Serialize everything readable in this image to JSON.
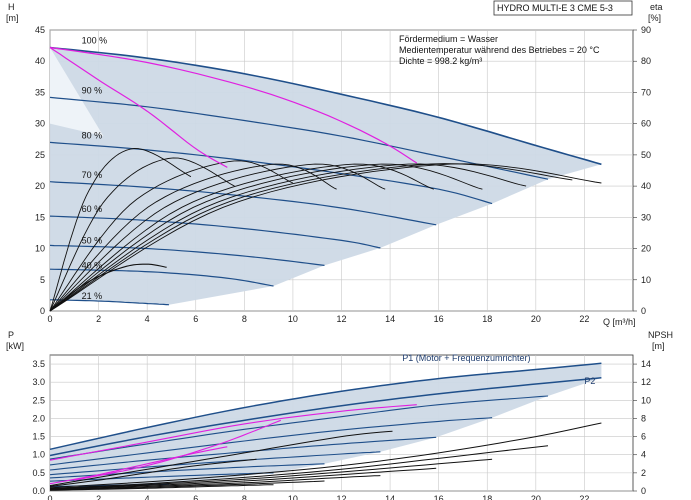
{
  "title": "HYDRO MULTI-E 3 CME 5-3",
  "annotations": [
    "Fördermedium = Wasser",
    "Medientemperatur während des Betriebes = 20 °C",
    "Dichte = 998.2 kg/m³"
  ],
  "colors": {
    "fill": "#cdd9e6",
    "curve": "#1f4f8a",
    "accent": "#e020e0",
    "eff": "#111111",
    "grid": "#c8c8c8"
  },
  "chart_data": [
    {
      "type": "line",
      "xlabel": "Q [m³/h]",
      "ylabel_left": [
        "H",
        "[m]"
      ],
      "ylabel_right": [
        "eta",
        "[%]"
      ],
      "xlim": [
        0,
        24
      ],
      "ylim_left": [
        0,
        45
      ],
      "ylim_right": [
        0,
        90
      ],
      "x_ticks": [
        "0",
        "2",
        "4",
        "6",
        "8",
        "10",
        "12",
        "14",
        "16",
        "18",
        "20",
        "22"
      ],
      "y_ticks_left": [
        "0",
        "5",
        "10",
        "15",
        "20",
        "25",
        "30",
        "35",
        "40",
        "45"
      ],
      "y_ticks_right": [
        "0",
        "10",
        "20",
        "30",
        "40",
        "50",
        "60",
        "70",
        "80",
        "90"
      ],
      "grid": true,
      "speed_labels": [
        {
          "text": "100 %",
          "x": 1.3,
          "y": 42.5
        },
        {
          "text": "90 %",
          "x": 1.3,
          "y": 34.5
        },
        {
          "text": "80 %",
          "x": 1.3,
          "y": 27.3
        },
        {
          "text": "70 %",
          "x": 1.3,
          "y": 21.0
        },
        {
          "text": "60 %",
          "x": 1.3,
          "y": 15.5
        },
        {
          "text": "50 %",
          "x": 1.3,
          "y": 10.5
        },
        {
          "text": "40 %",
          "x": 1.3,
          "y": 6.5
        },
        {
          "text": "21 %",
          "x": 1.3,
          "y": 1.6
        }
      ],
      "head_curves": [
        {
          "speed": "100 %",
          "x": [
            0,
            4,
            8,
            12,
            16,
            20,
            22.7
          ],
          "y": [
            42.2,
            40.5,
            38,
            34.7,
            31,
            26.5,
            23.5
          ]
        },
        {
          "speed": "90 %",
          "x": [
            0,
            4,
            8,
            12,
            16,
            20.5
          ],
          "y": [
            34.2,
            32.7,
            30.5,
            28,
            24.8,
            21.1
          ]
        },
        {
          "speed": "80 %",
          "x": [
            0,
            4,
            8,
            12,
            16,
            18.2
          ],
          "y": [
            27,
            25.8,
            24.1,
            22,
            19.5,
            17.2
          ]
        },
        {
          "speed": "70 %",
          "x": [
            0,
            4,
            8,
            12,
            15.9
          ],
          "y": [
            20.7,
            19.8,
            18.4,
            16.5,
            13.8
          ]
        },
        {
          "speed": "60 %",
          "x": [
            0,
            4,
            8,
            12,
            13.6
          ],
          "y": [
            15.2,
            14.5,
            13.2,
            11.3,
            10.1
          ]
        },
        {
          "speed": "50 %",
          "x": [
            0,
            4,
            8,
            11.3
          ],
          "y": [
            10.5,
            10,
            8.8,
            7.3
          ]
        },
        {
          "speed": "40 %",
          "x": [
            0,
            4,
            7.2,
            9.2
          ],
          "y": [
            6.7,
            6.3,
            5.3,
            4.0
          ]
        },
        {
          "speed": "21 %",
          "x": [
            0,
            2,
            4,
            4.9
          ],
          "y": [
            1.8,
            1.6,
            1.2,
            1.0
          ]
        }
      ],
      "accent_curves": [
        {
          "x": [
            0,
            2,
            4,
            6,
            7.3
          ],
          "y": [
            42.2,
            37,
            32,
            26,
            23
          ]
        },
        {
          "x": [
            0,
            4,
            8,
            11,
            13.5,
            15.1
          ],
          "y": [
            42.2,
            39.8,
            36,
            32,
            27.5,
            23.7
          ]
        }
      ],
      "efficiency_peaks": [
        {
          "peak_x": 3.4,
          "peak_eta": 52,
          "end_x": 5.8,
          "end_eta": 43
        },
        {
          "peak_x": 5.0,
          "peak_eta": 49,
          "end_x": 7.6,
          "end_eta": 40
        },
        {
          "peak_x": 7.5,
          "peak_eta": 48,
          "end_x": 10.0,
          "end_eta": 41
        },
        {
          "peak_x": 9.2,
          "peak_eta": 47,
          "end_x": 11.8,
          "end_eta": 39
        },
        {
          "peak_x": 10.8,
          "peak_eta": 47,
          "end_x": 13.8,
          "end_eta": 39
        },
        {
          "peak_x": 12.4,
          "peak_eta": 47,
          "end_x": 15.8,
          "end_eta": 39
        },
        {
          "peak_x": 13.5,
          "peak_eta": 47,
          "end_x": 17.8,
          "end_eta": 39
        },
        {
          "peak_x": 14.6,
          "peak_eta": 47,
          "end_x": 19.6,
          "end_eta": 40
        },
        {
          "peak_x": 15.5,
          "peak_eta": 47,
          "end_x": 21.5,
          "end_eta": 42
        },
        {
          "peak_x": 16.3,
          "peak_eta": 47,
          "end_x": 22.7,
          "end_eta": 41
        }
      ],
      "efficiency_small": [
        {
          "x": [
            0,
            1.5,
            3,
            4,
            4.8
          ],
          "y": [
            0,
            9,
            14,
            15,
            14
          ]
        }
      ]
    },
    {
      "type": "line",
      "xlabel": "Q [m³/h]",
      "ylabel_left": [
        "P",
        "[kW]"
      ],
      "ylabel_right": [
        "NPSH",
        "[m]"
      ],
      "xlim": [
        0,
        24
      ],
      "ylim_left": [
        0,
        3.75
      ],
      "ylim_right": [
        0,
        15
      ],
      "x_ticks": [
        "0",
        "2",
        "4",
        "6",
        "8",
        "10",
        "12",
        "14",
        "16",
        "18",
        "20",
        "22"
      ],
      "y_ticks_left": [
        "0.0",
        "0.5",
        "1.0",
        "1.5",
        "2.0",
        "2.5",
        "3.0",
        "3.5"
      ],
      "y_ticks_right": [
        "0",
        "2",
        "4",
        "6",
        "8",
        "10",
        "12",
        "14"
      ],
      "grid": true,
      "series_labels": [
        {
          "text": "P1 (Motor + Frequenzumrichter)",
          "x": 14.5,
          "y": 3.58
        },
        {
          "text": "P2",
          "x": 22.0,
          "y": 2.95
        }
      ],
      "power_curves": [
        {
          "name": "P1 (Motor + Frequenzumrichter)",
          "x": [
            0,
            4,
            8,
            12,
            16,
            20,
            22.7
          ],
          "y": [
            1.15,
            1.75,
            2.3,
            2.75,
            3.1,
            3.35,
            3.52
          ]
        },
        {
          "name": "P2",
          "x": [
            0,
            4,
            8,
            12,
            16,
            20,
            22.7
          ],
          "y": [
            0.98,
            1.5,
            1.95,
            2.35,
            2.68,
            2.95,
            3.12
          ]
        },
        {
          "x": [
            0,
            4,
            8,
            12,
            16,
            20.5
          ],
          "y": [
            0.88,
            1.3,
            1.7,
            2.05,
            2.38,
            2.62
          ]
        },
        {
          "x": [
            0,
            4,
            8,
            12,
            16,
            18.2
          ],
          "y": [
            0.72,
            1.05,
            1.38,
            1.68,
            1.92,
            2.02
          ]
        },
        {
          "x": [
            0,
            4,
            8,
            12,
            15.9
          ],
          "y": [
            0.58,
            0.85,
            1.08,
            1.3,
            1.48
          ]
        },
        {
          "x": [
            0,
            4,
            8,
            12,
            13.6
          ],
          "y": [
            0.45,
            0.66,
            0.85,
            1.02,
            1.08
          ]
        },
        {
          "x": [
            0,
            4,
            8,
            11.3
          ],
          "y": [
            0.36,
            0.52,
            0.66,
            0.75
          ]
        },
        {
          "x": [
            0,
            4,
            7.2,
            9.2
          ],
          "y": [
            0.27,
            0.38,
            0.46,
            0.5
          ]
        },
        {
          "x": [
            0,
            2,
            4,
            4.9
          ],
          "y": [
            0.12,
            0.15,
            0.18,
            0.2
          ]
        }
      ],
      "accent_curves": [
        {
          "x": [
            0,
            4,
            8,
            12,
            15.1
          ],
          "y": [
            0.85,
            1.35,
            1.85,
            2.2,
            2.38
          ]
        },
        {
          "x": [
            0,
            2,
            4,
            6,
            7.3
          ],
          "y": [
            0.2,
            0.45,
            0.75,
            1.05,
            1.22
          ]
        },
        {
          "x": [
            1,
            4,
            7,
            9.5
          ],
          "y": [
            0.3,
            0.7,
            1.3,
            1.95
          ]
        }
      ],
      "npsh_curves": [
        {
          "x": [
            0,
            4,
            8,
            12,
            16,
            20,
            22.7
          ],
          "y": [
            0.4,
            1.0,
            1.8,
            2.8,
            4.2,
            6.0,
            7.5
          ]
        },
        {
          "x": [
            0,
            4,
            8,
            12,
            16,
            20.5
          ],
          "y": [
            0.3,
            0.8,
            1.5,
            2.4,
            3.6,
            5.0
          ]
        },
        {
          "x": [
            0,
            4,
            8,
            12,
            16,
            18.2
          ],
          "y": [
            0.25,
            0.7,
            1.3,
            2.1,
            3.0,
            3.5
          ]
        },
        {
          "x": [
            0,
            4,
            8,
            12,
            15.9
          ],
          "y": [
            0.2,
            0.6,
            1.1,
            1.8,
            2.5
          ]
        },
        {
          "x": [
            0,
            4,
            8,
            12,
            13.6
          ],
          "y": [
            0.15,
            0.5,
            0.9,
            1.5,
            1.7
          ]
        },
        {
          "x": [
            0,
            4,
            8,
            11.3
          ],
          "y": [
            0.1,
            0.4,
            0.75,
            1.1
          ]
        },
        {
          "x": [
            0,
            4,
            7.2,
            9.2
          ],
          "y": [
            0.08,
            0.3,
            0.55,
            0.7
          ]
        },
        {
          "x": [
            0,
            4,
            8,
            12,
            14.1
          ],
          "y": [
            0.6,
            2.4,
            4.2,
            6.0,
            6.6
          ]
        },
        {
          "x": [
            0,
            2,
            4,
            6,
            8.5
          ],
          "y": [
            0.5,
            1.2,
            2.0,
            2.8,
            3.5
          ]
        }
      ]
    }
  ]
}
